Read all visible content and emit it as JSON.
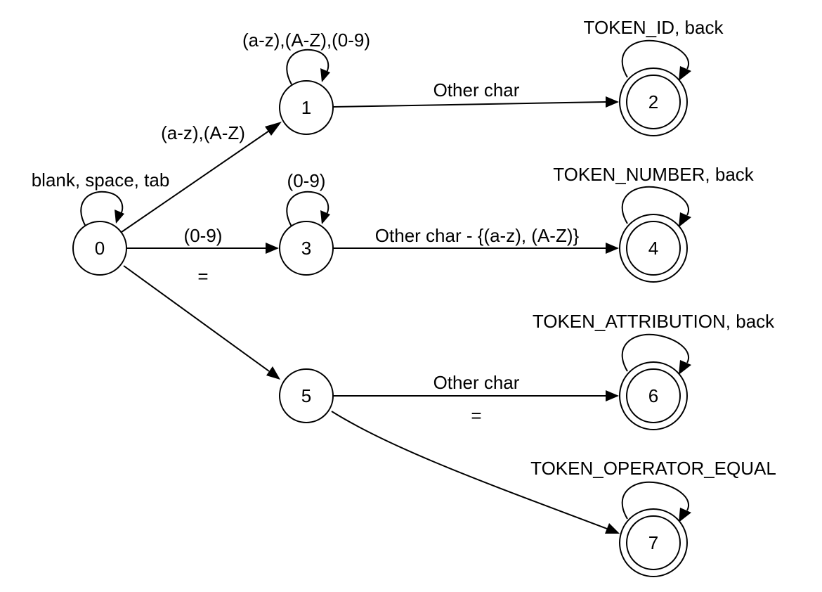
{
  "states": [
    {
      "id": "0",
      "label": "0",
      "accepting": false
    },
    {
      "id": "1",
      "label": "1",
      "accepting": false
    },
    {
      "id": "2",
      "label": "2",
      "accepting": true
    },
    {
      "id": "3",
      "label": "3",
      "accepting": false
    },
    {
      "id": "4",
      "label": "4",
      "accepting": true
    },
    {
      "id": "5",
      "label": "5",
      "accepting": false
    },
    {
      "id": "6",
      "label": "6",
      "accepting": true
    },
    {
      "id": "7",
      "label": "7",
      "accepting": true
    }
  ],
  "transitions": {
    "loop_0": {
      "from": "0",
      "to": "0",
      "label": "blank, space, tab"
    },
    "loop_1": {
      "from": "1",
      "to": "1",
      "label": "(a-z),(A-Z),(0-9)"
    },
    "loop_3": {
      "from": "3",
      "to": "3",
      "label": "(0-9)"
    },
    "loop_2": {
      "from": "2",
      "to": "2",
      "label": "TOKEN_ID, back"
    },
    "loop_4": {
      "from": "4",
      "to": "4",
      "label": "TOKEN_NUMBER, back"
    },
    "loop_6": {
      "from": "6",
      "to": "6",
      "label": "TOKEN_ATTRIBUTION, back"
    },
    "loop_7": {
      "from": "7",
      "to": "7",
      "label": "TOKEN_OPERATOR_EQUAL"
    },
    "e_0_1": {
      "from": "0",
      "to": "1",
      "label": "(a-z),(A-Z)"
    },
    "e_0_3": {
      "from": "0",
      "to": "3",
      "label": "(0-9)"
    },
    "e_0_5": {
      "from": "0",
      "to": "5",
      "label": "="
    },
    "e_1_2": {
      "from": "1",
      "to": "2",
      "label": "Other char"
    },
    "e_3_4": {
      "from": "3",
      "to": "4",
      "label": "Other char - {(a-z), (A-Z)}"
    },
    "e_5_6": {
      "from": "5",
      "to": "6",
      "label": "Other char"
    },
    "e_5_7": {
      "from": "5",
      "to": "7",
      "label": "="
    }
  }
}
